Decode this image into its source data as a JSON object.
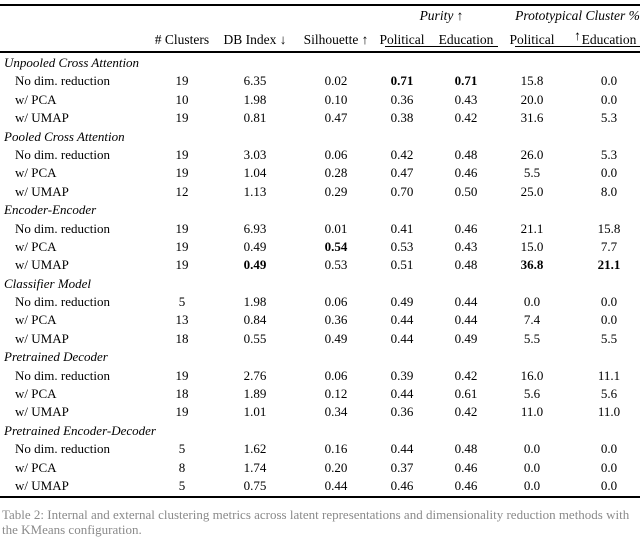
{
  "table": {
    "column_groups": [
      {
        "label": "Purity ↑",
        "span": [
          "Political",
          "Education"
        ]
      },
      {
        "label": "Prototypical Cluster % ↑",
        "span": [
          "Political",
          "Education"
        ]
      }
    ],
    "columns": [
      "# Clusters",
      "DB Index ↓",
      "Silhouette ↑",
      "Political",
      "Education",
      "Political",
      "Education"
    ],
    "groups": [
      {
        "name": "Unpooled Cross Attention",
        "rows": [
          {
            "label": "No dim. reduction",
            "values": [
              "19",
              "6.35",
              "0.02",
              "0.71",
              "0.71",
              "15.8",
              "0.0"
            ],
            "bold": [
              3,
              4
            ]
          },
          {
            "label": "w/ PCA",
            "values": [
              "10",
              "1.98",
              "0.10",
              "0.36",
              "0.43",
              "20.0",
              "0.0"
            ],
            "bold": []
          },
          {
            "label": "w/ UMAP",
            "values": [
              "19",
              "0.81",
              "0.47",
              "0.38",
              "0.42",
              "31.6",
              "5.3"
            ],
            "bold": []
          }
        ]
      },
      {
        "name": "Pooled Cross Attention",
        "rows": [
          {
            "label": "No dim. reduction",
            "values": [
              "19",
              "3.03",
              "0.06",
              "0.42",
              "0.48",
              "26.0",
              "5.3"
            ],
            "bold": []
          },
          {
            "label": "w/ PCA",
            "values": [
              "19",
              "1.04",
              "0.28",
              "0.47",
              "0.46",
              "5.5",
              "0.0"
            ],
            "bold": []
          },
          {
            "label": "w/ UMAP",
            "values": [
              "12",
              "1.13",
              "0.29",
              "0.70",
              "0.50",
              "25.0",
              "8.0"
            ],
            "bold": []
          }
        ]
      },
      {
        "name": "Encoder-Encoder",
        "rows": [
          {
            "label": "No dim. reduction",
            "values": [
              "19",
              "6.93",
              "0.01",
              "0.41",
              "0.46",
              "21.1",
              "15.8"
            ],
            "bold": []
          },
          {
            "label": "w/ PCA",
            "values": [
              "19",
              "0.49",
              "0.54",
              "0.53",
              "0.43",
              "15.0",
              "7.7"
            ],
            "bold": [
              2
            ]
          },
          {
            "label": "w/ UMAP",
            "values": [
              "19",
              "0.49",
              "0.53",
              "0.51",
              "0.48",
              "36.8",
              "21.1"
            ],
            "bold": [
              1,
              5,
              6
            ]
          }
        ]
      },
      {
        "name": "Classifier Model",
        "rows": [
          {
            "label": "No dim. reduction",
            "values": [
              "5",
              "1.98",
              "0.06",
              "0.49",
              "0.44",
              "0.0",
              "0.0"
            ],
            "bold": []
          },
          {
            "label": "w/ PCA",
            "values": [
              "13",
              "0.84",
              "0.36",
              "0.44",
              "0.44",
              "7.4",
              "0.0"
            ],
            "bold": []
          },
          {
            "label": "w/ UMAP",
            "values": [
              "18",
              "0.55",
              "0.49",
              "0.44",
              "0.49",
              "5.5",
              "5.5"
            ],
            "bold": []
          }
        ]
      },
      {
        "name": "Pretrained Decoder",
        "rows": [
          {
            "label": "No dim. reduction",
            "values": [
              "19",
              "2.76",
              "0.06",
              "0.39",
              "0.42",
              "16.0",
              "11.1"
            ],
            "bold": []
          },
          {
            "label": "w/ PCA",
            "values": [
              "18",
              "1.89",
              "0.12",
              "0.44",
              "0.61",
              "5.6",
              "5.6"
            ],
            "bold": []
          },
          {
            "label": "w/ UMAP",
            "values": [
              "19",
              "1.01",
              "0.34",
              "0.36",
              "0.42",
              "11.0",
              "11.0"
            ],
            "bold": []
          }
        ]
      },
      {
        "name": "Pretrained Encoder-Decoder",
        "rows": [
          {
            "label": "No dim. reduction",
            "values": [
              "5",
              "1.62",
              "0.16",
              "0.44",
              "0.48",
              "0.0",
              "0.0"
            ],
            "bold": []
          },
          {
            "label": "w/ PCA",
            "values": [
              "8",
              "1.74",
              "0.20",
              "0.37",
              "0.46",
              "0.0",
              "0.0"
            ],
            "bold": []
          },
          {
            "label": "w/ UMAP",
            "values": [
              "5",
              "0.75",
              "0.44",
              "0.46",
              "0.46",
              "0.0",
              "0.0"
            ],
            "bold": []
          }
        ]
      }
    ],
    "caption_fragment": "Table 2: Internal and external clustering metrics across latent representations and dimensionality reduction methods with the KMeans configuration."
  }
}
